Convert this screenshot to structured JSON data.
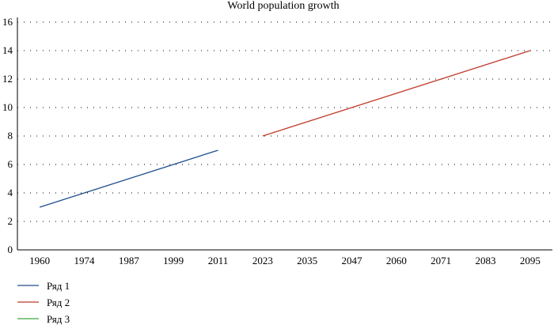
{
  "chart_data": {
    "type": "line",
    "title": "World population growth",
    "xlabel": "",
    "ylabel": "",
    "categories": [
      "1960",
      "1974",
      "1987",
      "1999",
      "2011",
      "2023",
      "2035",
      "2047",
      "2060",
      "2071",
      "2083",
      "2095"
    ],
    "ylim": [
      0,
      16
    ],
    "yticks": [
      0,
      2,
      4,
      6,
      8,
      10,
      12,
      14,
      16
    ],
    "grid": true,
    "legend_position": "bottom-left",
    "series": [
      {
        "name": "Ряд 1",
        "color": "#1f4e8c",
        "values": [
          3,
          4,
          5,
          6,
          7,
          null,
          null,
          null,
          null,
          null,
          null,
          null
        ]
      },
      {
        "name": "Ряд 2",
        "color": "#c0392b",
        "values": [
          null,
          null,
          null,
          null,
          null,
          8,
          9,
          10,
          11,
          12,
          13,
          14
        ]
      },
      {
        "name": "Ряд 3",
        "color": "#3aa63a",
        "values": [
          null,
          null,
          null,
          null,
          null,
          null,
          null,
          null,
          null,
          null,
          null,
          null
        ]
      }
    ]
  }
}
